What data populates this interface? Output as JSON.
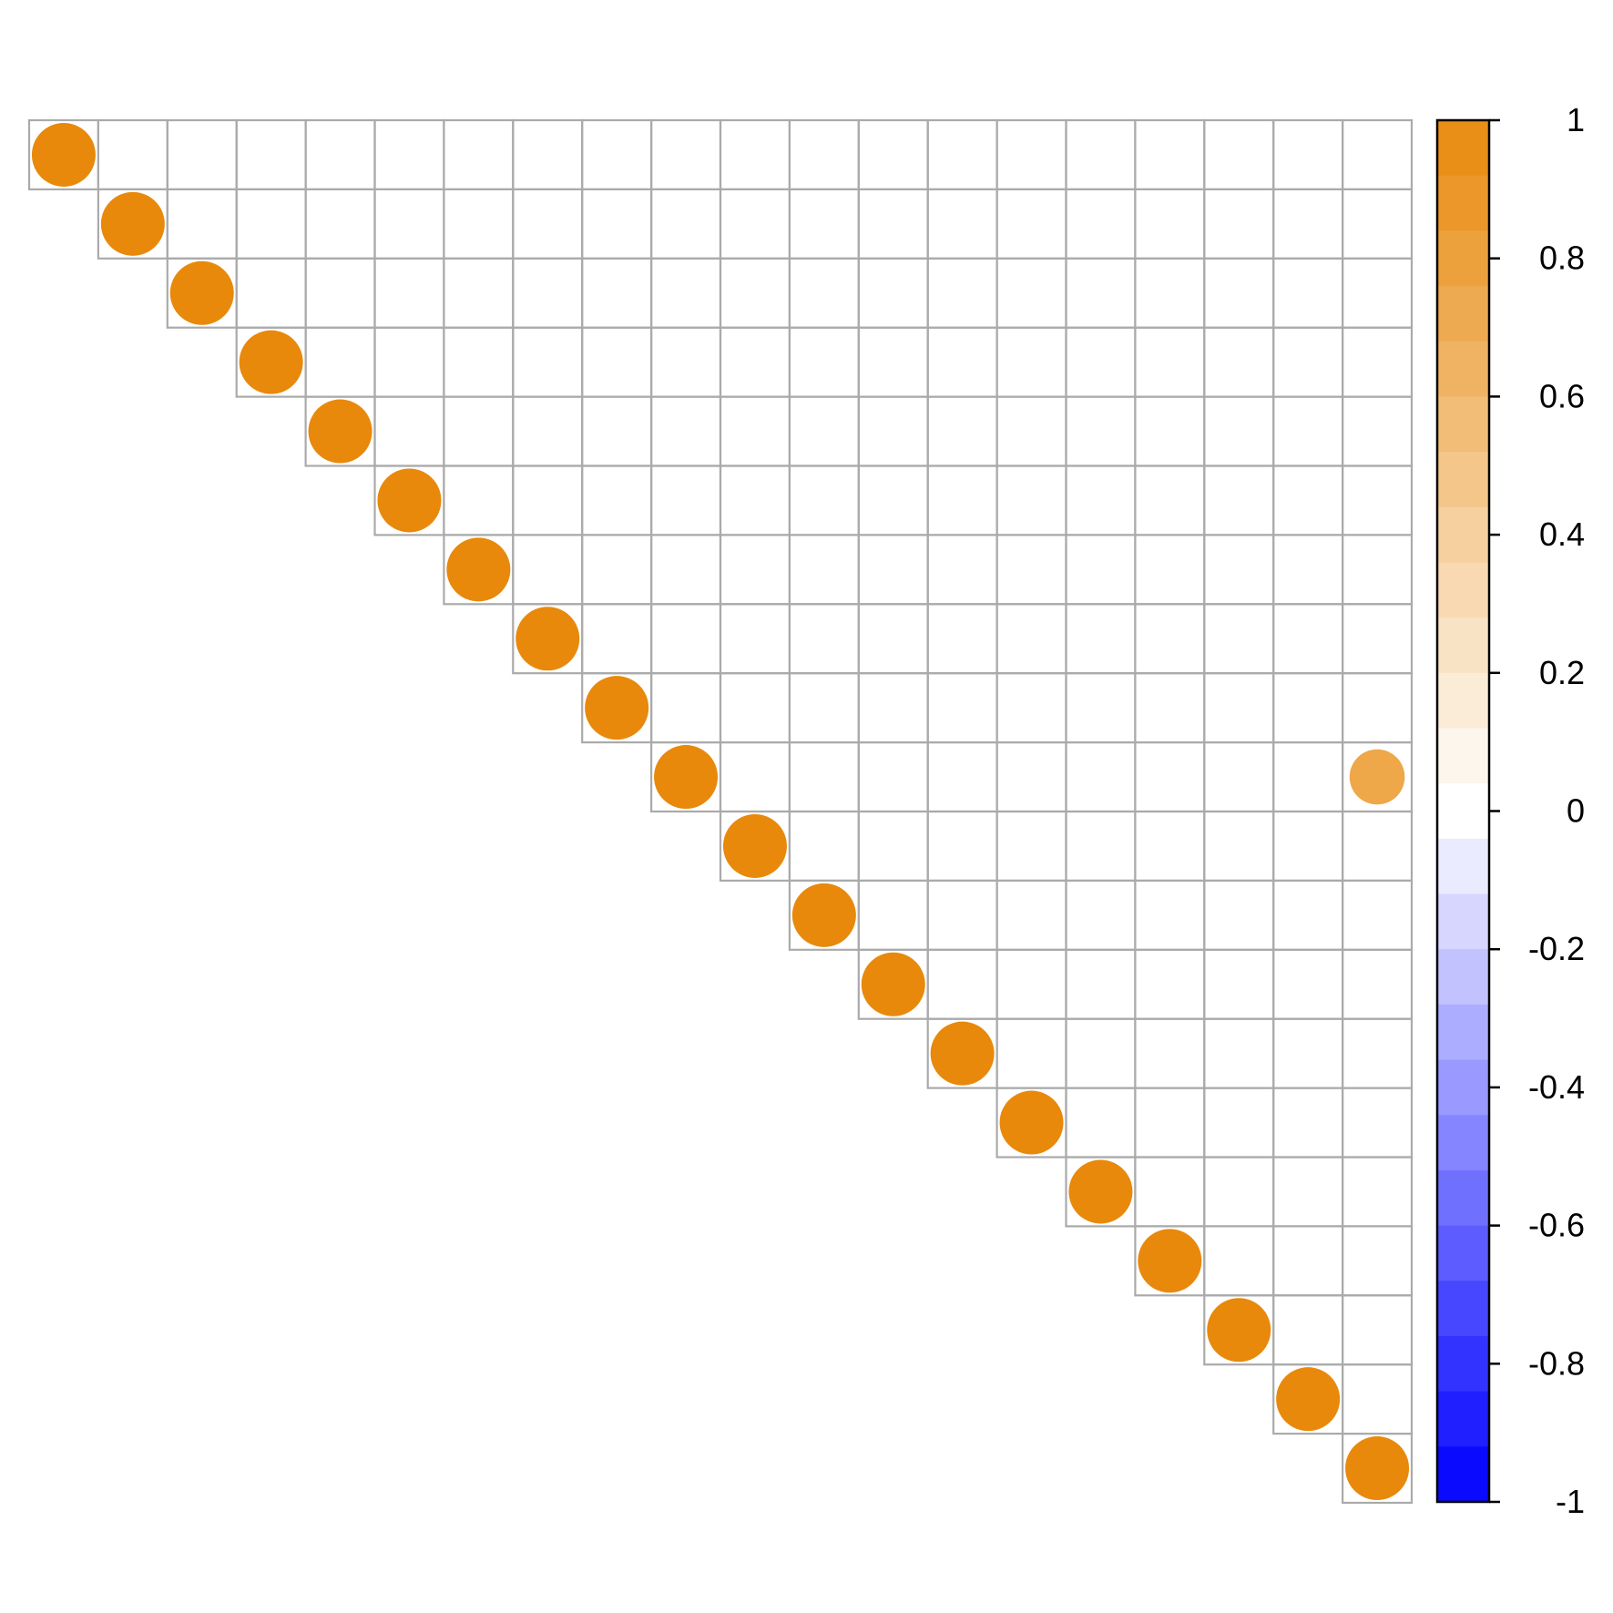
{
  "chart_data": {
    "type": "heatmap",
    "shape": "circle",
    "layout": "upper triangle",
    "n": 20,
    "cells": [
      {
        "row": 1,
        "col": 1,
        "value": 1
      },
      {
        "row": 2,
        "col": 2,
        "value": 1
      },
      {
        "row": 3,
        "col": 3,
        "value": 1
      },
      {
        "row": 4,
        "col": 4,
        "value": 1
      },
      {
        "row": 5,
        "col": 5,
        "value": 1
      },
      {
        "row": 6,
        "col": 6,
        "value": 1
      },
      {
        "row": 7,
        "col": 7,
        "value": 1
      },
      {
        "row": 8,
        "col": 8,
        "value": 1
      },
      {
        "row": 9,
        "col": 9,
        "value": 1
      },
      {
        "row": 10,
        "col": 10,
        "value": 1
      },
      {
        "row": 10,
        "col": 20,
        "value": 0.75
      },
      {
        "row": 11,
        "col": 11,
        "value": 1
      },
      {
        "row": 12,
        "col": 12,
        "value": 1
      },
      {
        "row": 13,
        "col": 13,
        "value": 1
      },
      {
        "row": 14,
        "col": 14,
        "value": 1
      },
      {
        "row": 15,
        "col": 15,
        "value": 1
      },
      {
        "row": 16,
        "col": 16,
        "value": 1
      },
      {
        "row": 17,
        "col": 17,
        "value": 1
      },
      {
        "row": 18,
        "col": 18,
        "value": 1
      },
      {
        "row": 19,
        "col": 19,
        "value": 1
      },
      {
        "row": 20,
        "col": 20,
        "value": 1
      }
    ],
    "colorbar": {
      "range": [
        -1,
        1
      ],
      "ticks": [
        "1",
        "0.8",
        "0.6",
        "0.4",
        "0.2",
        "0",
        "-0.2",
        "-0.4",
        "-0.6",
        "-0.8",
        "-1"
      ],
      "low_color": "#0000ff",
      "mid_color": "#ffffff",
      "high_color": "#e8890c"
    },
    "grid_color": "#aaaaaa"
  }
}
